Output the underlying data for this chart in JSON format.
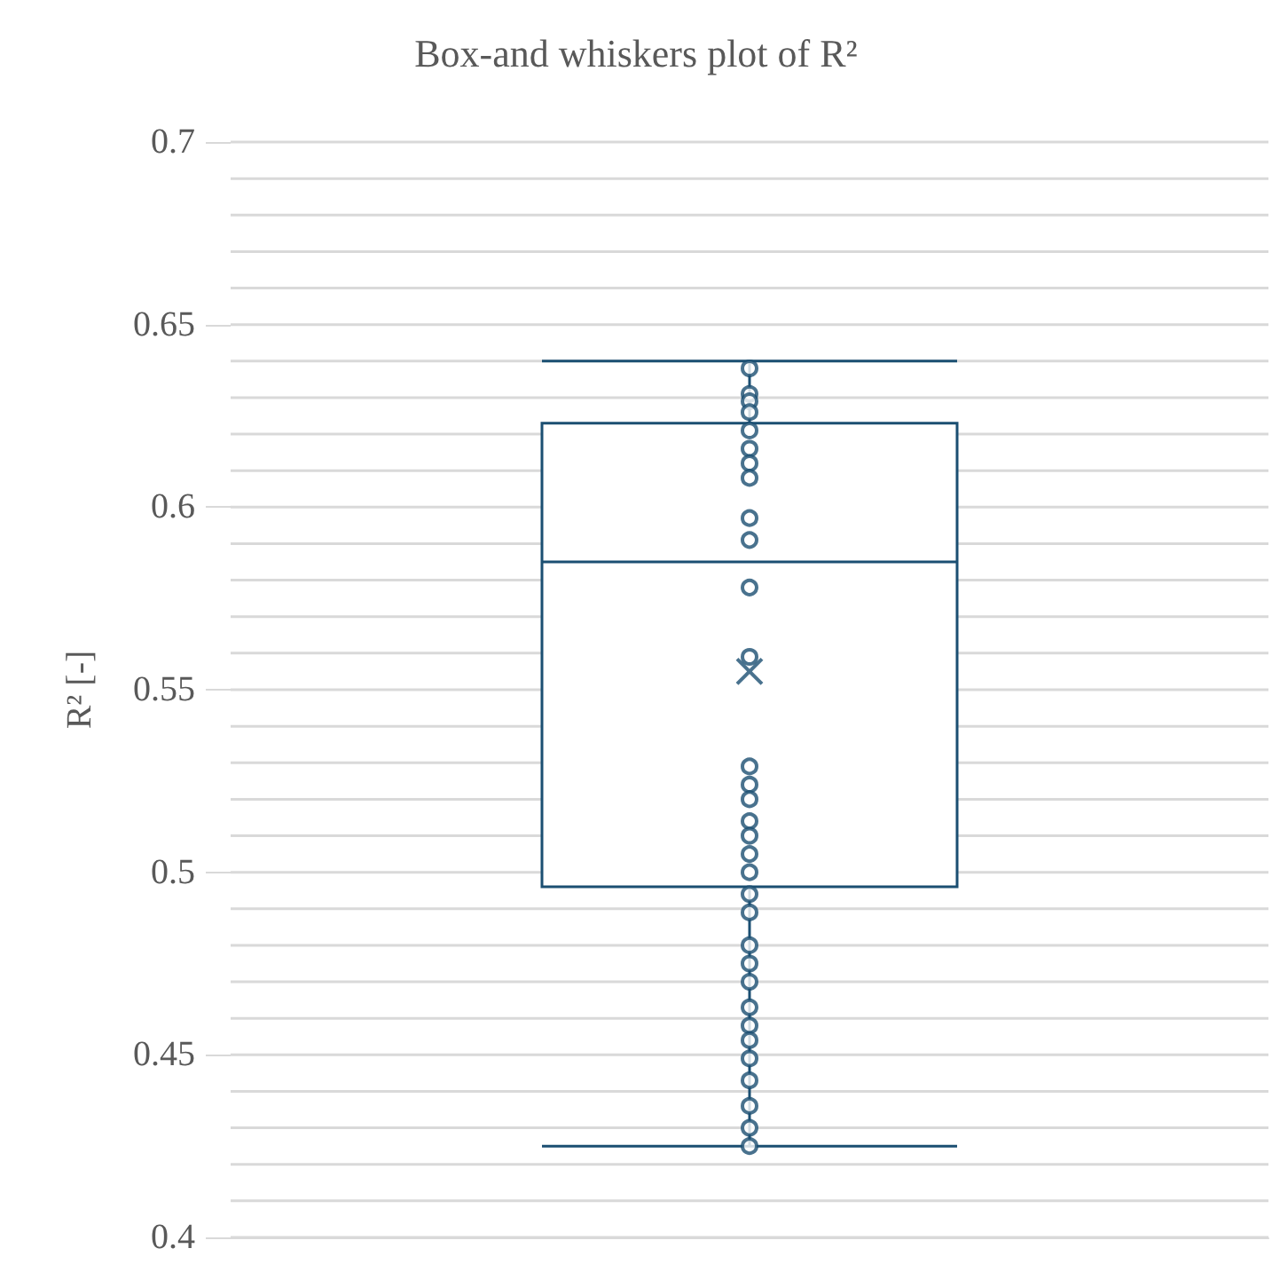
{
  "chart_data": {
    "type": "box",
    "title": "Box-and whiskers plot of R²",
    "ylabel": "R² [-]",
    "categories": [
      null
    ],
    "grid": "y",
    "ylim": [
      0.4,
      0.7
    ],
    "yticks": [
      0.4,
      {
        "value": 0.41,
        "label": null
      },
      {
        "value": 0.42,
        "label": null
      },
      {
        "value": 0.43,
        "label": null
      },
      {
        "value": 0.44,
        "label": null
      },
      0.45,
      {
        "value": 0.46,
        "label": null
      },
      {
        "value": 0.47,
        "label": null
      },
      {
        "value": 0.48,
        "label": null
      },
      {
        "value": 0.49,
        "label": null
      },
      0.5,
      {
        "value": 0.51,
        "label": null
      },
      {
        "value": 0.52,
        "label": null
      },
      {
        "value": 0.53,
        "label": null
      },
      {
        "value": 0.54,
        "label": null
      },
      0.55,
      {
        "value": 0.56,
        "label": null
      },
      {
        "value": 0.57,
        "label": null
      },
      {
        "value": 0.58,
        "label": null
      },
      {
        "value": 0.59,
        "label": null
      },
      0.6,
      {
        "value": 0.61,
        "label": null
      },
      {
        "value": 0.62,
        "label": null
      },
      {
        "value": 0.63,
        "label": null
      },
      {
        "value": 0.64,
        "label": null
      },
      0.65,
      {
        "value": 0.66,
        "label": null
      },
      {
        "value": 0.67,
        "label": null
      },
      {
        "value": 0.68,
        "label": null
      },
      {
        "value": 0.69,
        "label": null
      },
      0.7
    ],
    "series": [
      {
        "color": "#1b4f72",
        "boxes": [
          {
            "low": 0.425,
            "q1": 0.496,
            "median": 0.585,
            "q3": 0.623,
            "high": 0.64,
            "mean": 0.555
          }
        ]
      },
      {
        "type": "scatter",
        "color": "#1b4f72",
        "marker": "circle",
        "x": [
          null,
          null,
          null,
          null,
          null,
          null,
          null,
          null,
          null,
          null,
          null,
          null,
          null,
          null,
          null,
          null,
          null,
          null,
          null,
          null,
          null,
          null,
          null,
          null,
          null,
          null,
          null,
          null,
          null,
          null,
          null,
          null
        ],
        "values": [
          0.638,
          0.631,
          0.629,
          0.626,
          0.621,
          0.616,
          0.612,
          0.608,
          0.597,
          0.591,
          0.578,
          0.559,
          0.529,
          0.524,
          0.52,
          0.514,
          0.51,
          0.505,
          0.5,
          0.494,
          0.489,
          0.48,
          0.475,
          0.47,
          0.463,
          0.458,
          0.454,
          0.449,
          0.443,
          0.436,
          0.43,
          0.425
        ]
      }
    ]
  }
}
